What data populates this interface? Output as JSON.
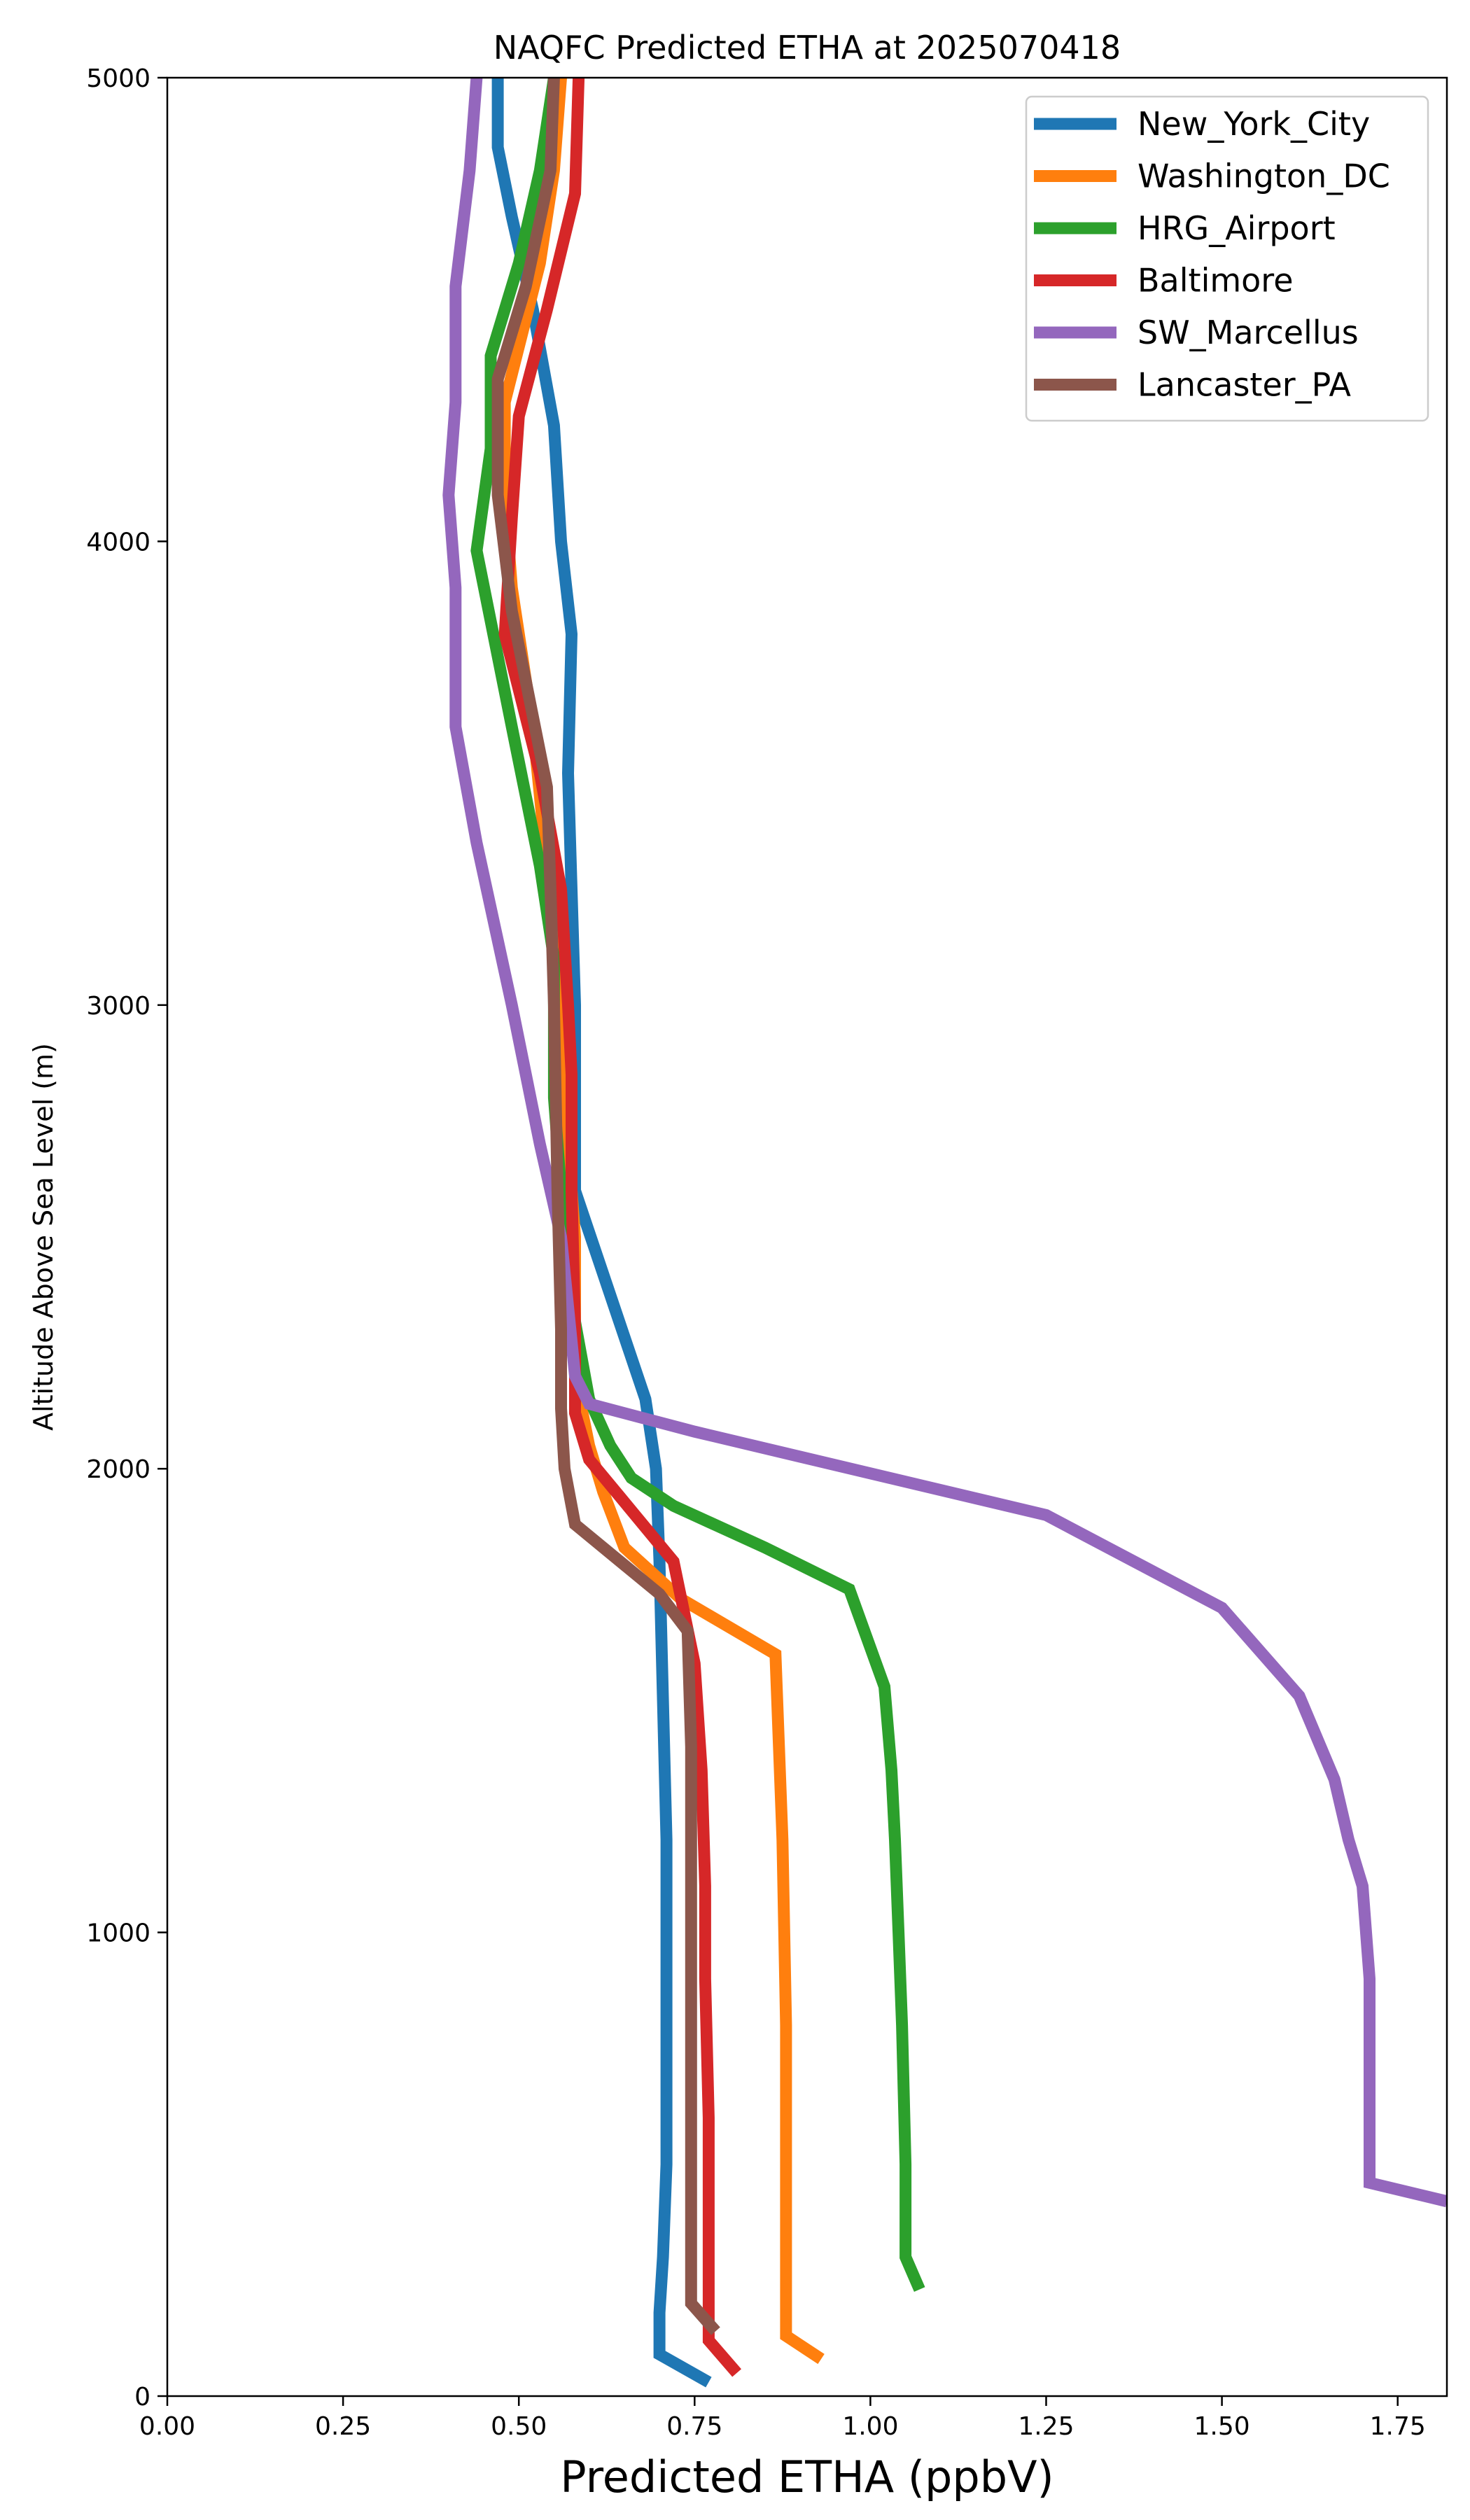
{
  "chart_data": {
    "type": "line",
    "title": "NAQFC Predicted ETHA at 2025070418",
    "xlabel": "Predicted ETHA (ppbV)",
    "ylabel": "Altitude Above Sea Level (m)",
    "xlim": [
      0,
      1.82
    ],
    "ylim": [
      0,
      5000
    ],
    "x_ticks": [
      "0.00",
      "0.25",
      "0.50",
      "0.75",
      "1.00",
      "1.25",
      "1.50",
      "1.75"
    ],
    "y_ticks": [
      "0",
      "1000",
      "2000",
      "3000",
      "4000",
      "5000"
    ],
    "grid": false,
    "legend_position": "upper right",
    "series": [
      {
        "name": "New_York_City",
        "color": "#1f77b4",
        "points": [
          [
            0.77,
            30
          ],
          [
            0.7,
            90
          ],
          [
            0.7,
            180
          ],
          [
            0.705,
            300
          ],
          [
            0.71,
            500
          ],
          [
            0.71,
            1000
          ],
          [
            0.71,
            1200
          ],
          [
            0.705,
            1500
          ],
          [
            0.7,
            1800
          ],
          [
            0.695,
            2000
          ],
          [
            0.68,
            2150
          ],
          [
            0.64,
            2330
          ],
          [
            0.58,
            2600
          ],
          [
            0.58,
            2700
          ],
          [
            0.58,
            3000
          ],
          [
            0.57,
            3500
          ],
          [
            0.575,
            3800
          ],
          [
            0.56,
            4000
          ],
          [
            0.55,
            4250
          ],
          [
            0.52,
            4500
          ],
          [
            0.49,
            4700
          ],
          [
            0.47,
            4850
          ],
          [
            0.47,
            5000
          ]
        ]
      },
      {
        "name": "Washington_DC",
        "color": "#ff7f0e",
        "points": [
          [
            0.93,
            80
          ],
          [
            0.88,
            130
          ],
          [
            0.88,
            300
          ],
          [
            0.88,
            800
          ],
          [
            0.875,
            1200
          ],
          [
            0.87,
            1400
          ],
          [
            0.865,
            1600
          ],
          [
            0.73,
            1720
          ],
          [
            0.65,
            1830
          ],
          [
            0.62,
            1950
          ],
          [
            0.6,
            2050
          ],
          [
            0.58,
            2200
          ],
          [
            0.58,
            2500
          ],
          [
            0.57,
            2700
          ],
          [
            0.56,
            3000
          ],
          [
            0.54,
            3300
          ],
          [
            0.52,
            3600
          ],
          [
            0.49,
            3900
          ],
          [
            0.48,
            4100
          ],
          [
            0.48,
            4300
          ],
          [
            0.53,
            4600
          ],
          [
            0.55,
            4800
          ],
          [
            0.56,
            5000
          ]
        ]
      },
      {
        "name": "HRG_Airport",
        "color": "#2ca02c",
        "points": [
          [
            1.07,
            230
          ],
          [
            1.05,
            300
          ],
          [
            1.05,
            500
          ],
          [
            1.045,
            800
          ],
          [
            1.04,
            1000
          ],
          [
            1.035,
            1200
          ],
          [
            1.03,
            1350
          ],
          [
            1.02,
            1530
          ],
          [
            0.97,
            1740
          ],
          [
            0.85,
            1830
          ],
          [
            0.72,
            1920
          ],
          [
            0.66,
            1980
          ],
          [
            0.63,
            2050
          ],
          [
            0.6,
            2150
          ],
          [
            0.57,
            2400
          ],
          [
            0.55,
            2800
          ],
          [
            0.55,
            3100
          ],
          [
            0.53,
            3300
          ],
          [
            0.49,
            3600
          ],
          [
            0.44,
            3980
          ],
          [
            0.46,
            4200
          ],
          [
            0.46,
            4400
          ],
          [
            0.5,
            4600
          ],
          [
            0.53,
            4800
          ],
          [
            0.55,
            5000
          ]
        ]
      },
      {
        "name": "Baltimore",
        "color": "#d62728",
        "points": [
          [
            0.81,
            50
          ],
          [
            0.77,
            120
          ],
          [
            0.77,
            300
          ],
          [
            0.77,
            600
          ],
          [
            0.765,
            900
          ],
          [
            0.765,
            1100
          ],
          [
            0.76,
            1350
          ],
          [
            0.75,
            1580
          ],
          [
            0.72,
            1800
          ],
          [
            0.6,
            2020
          ],
          [
            0.58,
            2120
          ],
          [
            0.58,
            2300
          ],
          [
            0.575,
            2600
          ],
          [
            0.575,
            2850
          ],
          [
            0.57,
            3000
          ],
          [
            0.56,
            3250
          ],
          [
            0.53,
            3500
          ],
          [
            0.48,
            3800
          ],
          [
            0.49,
            4050
          ],
          [
            0.5,
            4270
          ],
          [
            0.54,
            4500
          ],
          [
            0.58,
            4750
          ],
          [
            0.585,
            5000
          ]
        ]
      },
      {
        "name": "SW_Marcellus",
        "color": "#9467bd",
        "points": [
          [
            1.82,
            420
          ],
          [
            1.71,
            460
          ],
          [
            1.71,
            650
          ],
          [
            1.71,
            900
          ],
          [
            1.7,
            1100
          ],
          [
            1.68,
            1200
          ],
          [
            1.66,
            1330
          ],
          [
            1.61,
            1510
          ],
          [
            1.5,
            1700
          ],
          [
            1.25,
            1900
          ],
          [
            0.75,
            2080
          ],
          [
            0.6,
            2140
          ],
          [
            0.58,
            2200
          ],
          [
            0.56,
            2500
          ],
          [
            0.53,
            2700
          ],
          [
            0.49,
            3000
          ],
          [
            0.44,
            3350
          ],
          [
            0.41,
            3600
          ],
          [
            0.41,
            3700
          ],
          [
            0.41,
            3900
          ],
          [
            0.4,
            4100
          ],
          [
            0.41,
            4300
          ],
          [
            0.41,
            4550
          ],
          [
            0.43,
            4800
          ],
          [
            0.44,
            5000
          ]
        ]
      },
      {
        "name": "Lancaster_PA",
        "color": "#8c564b",
        "points": [
          [
            0.78,
            140
          ],
          [
            0.745,
            200
          ],
          [
            0.745,
            500
          ],
          [
            0.745,
            800
          ],
          [
            0.745,
            1100
          ],
          [
            0.745,
            1400
          ],
          [
            0.74,
            1650
          ],
          [
            0.7,
            1730
          ],
          [
            0.58,
            1880
          ],
          [
            0.565,
            2000
          ],
          [
            0.56,
            2130
          ],
          [
            0.56,
            2300
          ],
          [
            0.555,
            2600
          ],
          [
            0.55,
            3000
          ],
          [
            0.545,
            3250
          ],
          [
            0.54,
            3470
          ],
          [
            0.49,
            3850
          ],
          [
            0.47,
            4100
          ],
          [
            0.47,
            4350
          ],
          [
            0.51,
            4550
          ],
          [
            0.545,
            4800
          ],
          [
            0.55,
            5000
          ]
        ]
      }
    ]
  }
}
